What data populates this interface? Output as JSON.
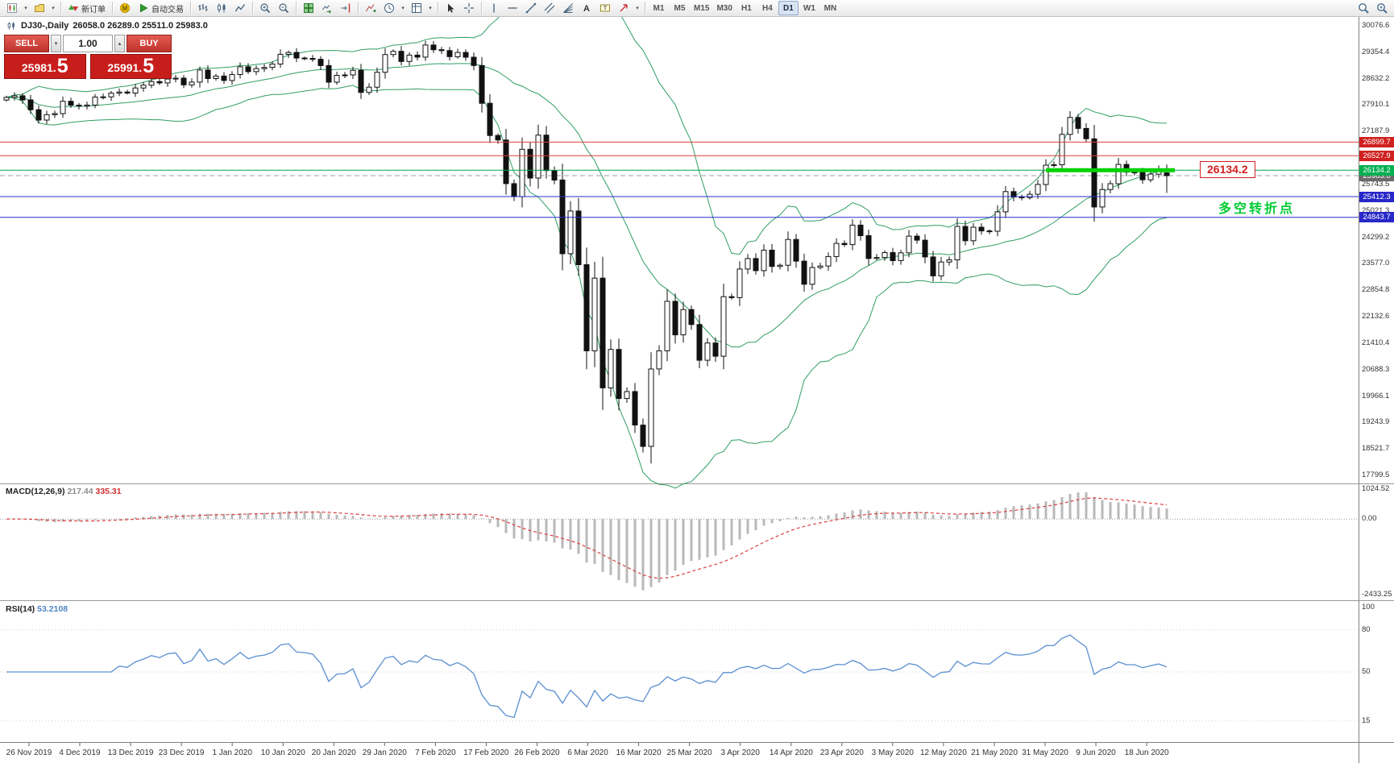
{
  "toolbar": {
    "items": [
      {
        "type": "icon",
        "name": "new-chart"
      },
      {
        "type": "caret",
        "name": "new-chart-dropdown"
      },
      {
        "type": "icon",
        "name": "chart-profiles"
      },
      {
        "type": "caret",
        "name": "chart-profiles-dropdown"
      },
      {
        "type": "sep"
      },
      {
        "type": "labeled",
        "name": "new-order",
        "label": "新订单"
      },
      {
        "type": "sep"
      },
      {
        "type": "icon",
        "name": "mql5"
      },
      {
        "type": "labeled",
        "name": "autotrading",
        "label": "自动交易"
      },
      {
        "type": "sep"
      },
      {
        "type": "icon",
        "name": "chart-bars"
      },
      {
        "type": "icon",
        "name": "chart-candles"
      },
      {
        "type": "icon",
        "name": "chart-line"
      },
      {
        "type": "sep"
      },
      {
        "type": "icon",
        "name": "zoom-in"
      },
      {
        "type": "icon",
        "name": "zoom-out"
      },
      {
        "type": "sep"
      },
      {
        "type": "icon",
        "name": "tile-windows"
      },
      {
        "type": "icon",
        "name": "auto-scroll"
      },
      {
        "type": "icon",
        "name": "chart-shift"
      },
      {
        "type": "sep"
      },
      {
        "type": "icon",
        "name": "indicators"
      },
      {
        "type": "icon",
        "name": "periods"
      },
      {
        "type": "caret",
        "name": "periods-dropdown"
      },
      {
        "type": "icon",
        "name": "templates"
      },
      {
        "type": "caret",
        "name": "templates-dropdown"
      },
      {
        "type": "sep"
      },
      {
        "type": "icon",
        "name": "cursor"
      },
      {
        "type": "icon",
        "name": "crosshair"
      },
      {
        "type": "sep"
      },
      {
        "type": "icon",
        "name": "vertical-line"
      },
      {
        "type": "icon",
        "name": "horizontal-line"
      },
      {
        "type": "icon",
        "name": "trendline"
      },
      {
        "type": "icon",
        "name": "equidistant-channel"
      },
      {
        "type": "icon",
        "name": "fibonacci"
      },
      {
        "type": "icon",
        "name": "text"
      },
      {
        "type": "icon",
        "name": "text-label"
      },
      {
        "type": "icon",
        "name": "arrows"
      },
      {
        "type": "caret",
        "name": "arrows-dropdown"
      },
      {
        "type": "sep"
      },
      {
        "type": "timeframes"
      },
      {
        "type": "spacer"
      },
      {
        "type": "icon",
        "name": "search"
      },
      {
        "type": "icon",
        "name": "search-advanced"
      }
    ],
    "timeframes": [
      "M1",
      "M5",
      "M15",
      "M30",
      "H1",
      "H4",
      "D1",
      "W1",
      "MN"
    ],
    "active_timeframe": "D1"
  },
  "trade_panel": {
    "sell_label": "SELL",
    "buy_label": "BUY",
    "volume": "1.00",
    "sell_price_small": "25981.",
    "sell_price_big": "5",
    "buy_price_small": "25991.",
    "buy_price_big": "5"
  },
  "chart": {
    "title": "DJ30-,Daily",
    "ohlc_text": "26058.0 26289.0 25511.0 25983.0",
    "annotation_level_label": "26134.2",
    "level_label_color": "#d02020",
    "annotation_text": "多空转折点",
    "annotation_color": "#00cc33",
    "macd_name": "MACD(12,26,9)",
    "macd_value_main": "217.44",
    "macd_value_signal": "335.31",
    "rsi_name": "RSI(14)",
    "rsi_value": "53.2108"
  },
  "chart_data": {
    "type": "candlestick",
    "symbol": "DJ30-",
    "timeframe": "Daily",
    "current_ohlc": {
      "open": 26058.0,
      "high": 26289.0,
      "low": 25511.0,
      "close": 25983.0
    },
    "first_open": 28050,
    "closes": [
      28121,
      28164,
      28051,
      27783,
      27502,
      27649,
      27678,
      28015,
      27909,
      27882,
      27911,
      28132,
      28135,
      28236,
      28267,
      28239,
      28377,
      28455,
      28551,
      28515,
      28621,
      28645,
      28462,
      28538,
      28868,
      28634,
      28703,
      28583,
      28745,
      28956,
      28823,
      28907,
      28939,
      29030,
      29297,
      29348,
      29196,
      29186,
      29160,
      28989,
      28535,
      28722,
      28734,
      28859,
      28256,
      28399,
      28807,
      29290,
      29379,
      29102,
      29276,
      29222,
      29551,
      29423,
      29398,
      29232,
      29348,
      29219,
      28992,
      27960,
      27081,
      26957,
      25766,
      25409,
      26703,
      25917,
      27090,
      26121,
      25864,
      23851,
      25018,
      23553,
      21200,
      23185,
      20188,
      21237,
      19898,
      20087,
      19173,
      18591,
      20704,
      21200,
      22552,
      21636,
      22327,
      21917,
      20943,
      21413,
      21052,
      22679,
      22653,
      23433,
      23719,
      23390,
      23949,
      23504,
      23537,
      24242,
      23650,
      23018,
      23475,
      23515,
      23775,
      24133,
      24101,
      24633,
      24345,
      23723,
      23749,
      23883,
      23664,
      23875,
      24331,
      24221,
      23764,
      23247,
      23625,
      23685,
      24597,
      24206,
      24575,
      24474,
      24465,
      24995,
      25548,
      25400,
      25383,
      25475,
      25743,
      26270,
      26282,
      27111,
      27572,
      27272,
      26990,
      25128,
      25605,
      25763,
      26290,
      26080,
      26080,
      25871,
      26025,
      26156,
      25983
    ],
    "price_axis": {
      "tick_start": 30076.6,
      "tick_step": 722.18,
      "tick_count": 18,
      "ticks": [
        "30076.6",
        "29354.4",
        "28632.2",
        "27910.1",
        "27187.9",
        "26465.7",
        "25743.5",
        "25021.3",
        "24299.2",
        "23577.0",
        "22854.8",
        "22132.6",
        "21410.4",
        "20688.3",
        "19966.1",
        "19243.9",
        "18521.7",
        "17799.5"
      ]
    },
    "x_tick_labels": [
      "26 Nov 2019",
      "4 Dec 2019",
      "13 Dec 2019",
      "23 Dec 2019",
      "1 Jan 2020",
      "10 Jan 2020",
      "20 Jan 2020",
      "29 Jan 2020",
      "7 Feb 2020",
      "17 Feb 2020",
      "26 Feb 2020",
      "6 Mar 2020",
      "16 Mar 2020",
      "25 Mar 2020",
      "3 Apr 2020",
      "14 Apr 2020",
      "23 Apr 2020",
      "3 May 2020",
      "12 May 2020",
      "21 May 2020",
      "31 May 2020",
      "9 Jun 2020",
      "18 Jun 2020"
    ],
    "hlines": [
      {
        "price": 26899.7,
        "label": "26899.7",
        "color": "#e23b3b",
        "badge": "#d02020"
      },
      {
        "price": 26527.9,
        "label": "26527.9",
        "color": "#e23b3b",
        "badge": "#d02020"
      },
      {
        "price": 26134.2,
        "label": "26134.2",
        "color": "#00a651",
        "badge": "#00b050"
      },
      {
        "price": 25412.3,
        "label": "25412.3",
        "color": "#2d2dd0",
        "badge": "#2828c8"
      },
      {
        "price": 24843.7,
        "label": "24843.7",
        "color": "#2d2dd0",
        "badge": "#2828c8"
      }
    ],
    "bid_line": {
      "price": 25983.0,
      "label": "25983.0",
      "badge": "#6a6a6a"
    },
    "highlight_segment": {
      "price": 26134.2,
      "from_index": 129.5,
      "to_index": 145,
      "color": "#00d200"
    },
    "bollinger": {
      "period": 20,
      "deviation": 2,
      "color": "#2f9e63"
    },
    "macd": {
      "fast": 12,
      "slow": 26,
      "signal": 9,
      "axis": {
        "max": 1024.52,
        "zero": 0.0,
        "min": -2433.25
      },
      "axis_labels": [
        "1024.52",
        "0.00",
        "-2433.25"
      ],
      "histogram_color": "#b9b9b9",
      "signal_color": "#d94040"
    },
    "rsi": {
      "period": 14,
      "value": 53.2108,
      "color": "#5b8fd0",
      "ticks": [
        100,
        80,
        50,
        15
      ],
      "levels": [
        80,
        50,
        15
      ]
    }
  }
}
